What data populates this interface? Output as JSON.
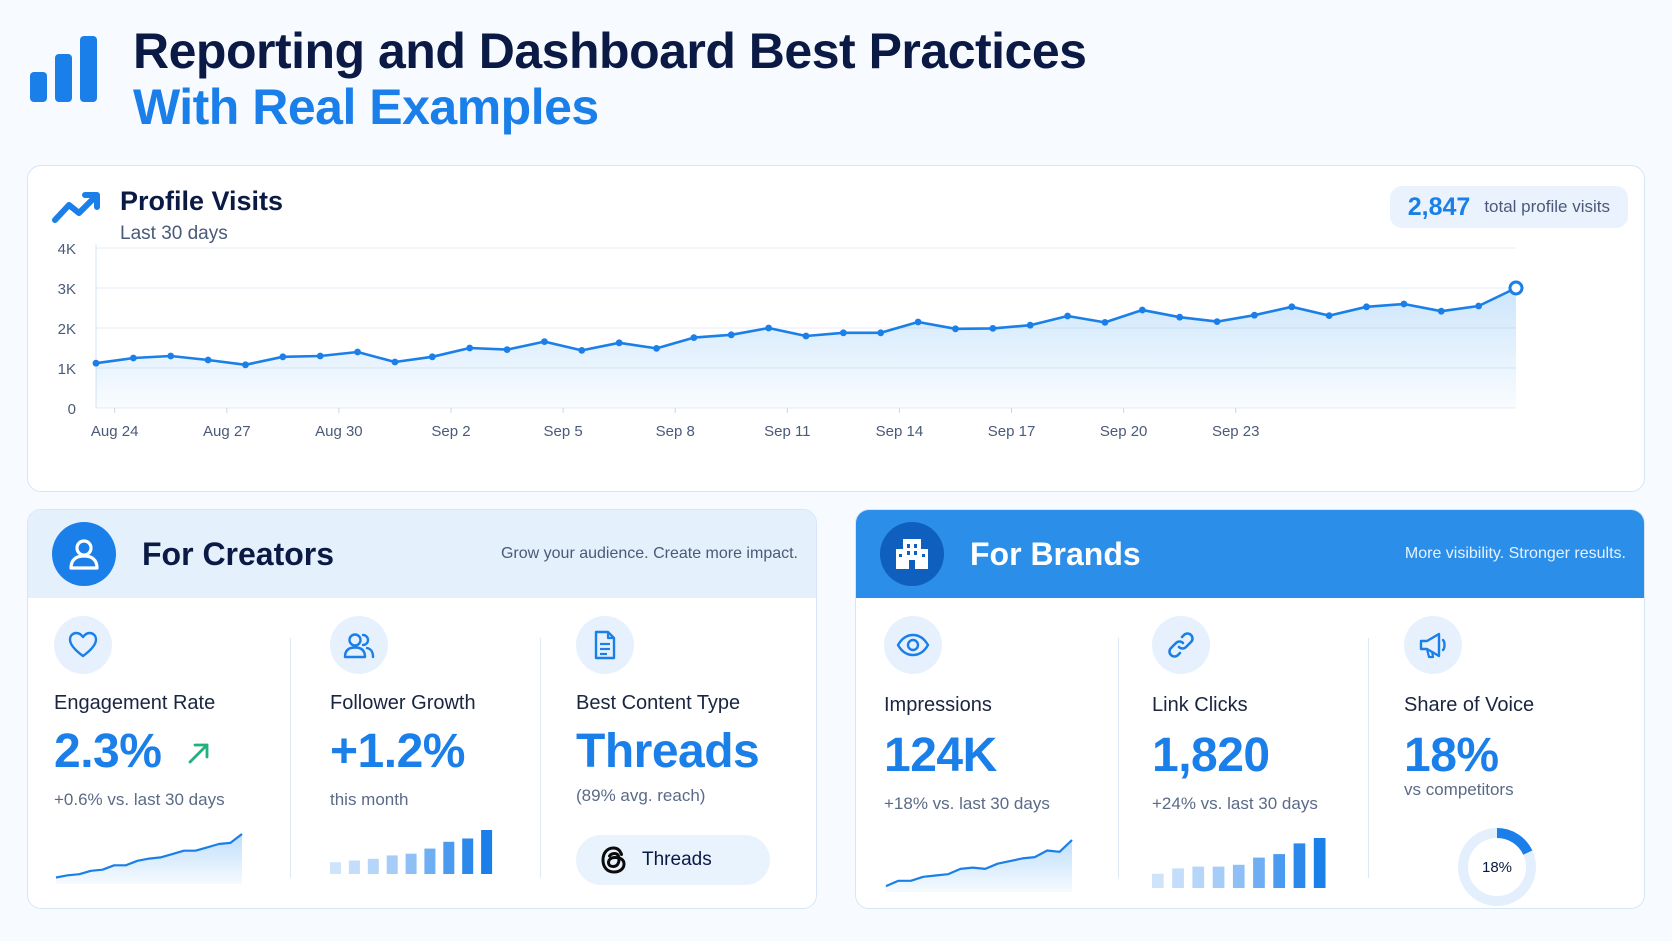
{
  "page": {
    "title_line1": "Reporting and Dashboard Best Practices",
    "title_line2": "With Real Examples",
    "logo_icon": "bar-chart-logo-icon"
  },
  "colors": {
    "accent": "#1a7fe8",
    "accent_light": "#e4f0fc",
    "brand_header": "#2b8ee8",
    "dark": "#0b1a45",
    "growth_arrow": "#22b07d"
  },
  "profile_visits": {
    "title": "Profile Visits",
    "subtitle": "Last 30 days",
    "total_value": "2,847",
    "total_label": "total profile visits"
  },
  "chart_data": [
    {
      "type": "line",
      "title": "Profile Visits",
      "subtitle": "Last 30 days",
      "x_tick_labels": [
        "Aug 24",
        "Aug 27",
        "Aug 30",
        "Sep 2",
        "Sep 5",
        "Sep 8",
        "Sep 11",
        "Sep 14",
        "Sep 17",
        "Sep 20",
        "Sep 23"
      ],
      "y_tick_labels": [
        "0",
        "1K",
        "2K",
        "3K",
        "4K"
      ],
      "ylim": [
        0,
        4000
      ],
      "grid": true,
      "fill": "area under line",
      "series": [
        {
          "values": [
            1120,
            1250,
            1300,
            1200,
            1080,
            1280,
            1300,
            1400,
            1150,
            1280,
            1500,
            1460,
            1660,
            1440,
            1630,
            1490,
            1760,
            1830,
            2000,
            1800,
            1880,
            1880,
            2150,
            1980,
            1990,
            2070,
            2300,
            2140,
            2450,
            2270,
            2160,
            2320,
            2530,
            2310,
            2530,
            2600,
            2420,
            2550,
            3000
          ]
        }
      ]
    },
    {
      "type": "area",
      "name": "Engagement Rate sparkline",
      "values": [
        8,
        12,
        14,
        20,
        22,
        30,
        30,
        38,
        42,
        44,
        50,
        56,
        56,
        62,
        68,
        70,
        86
      ]
    },
    {
      "type": "bar",
      "name": "Follower Growth bars",
      "values": [
        14,
        16,
        18,
        22,
        24,
        30,
        38,
        42,
        52
      ]
    },
    {
      "type": "area",
      "name": "Impressions sparkline",
      "values": [
        6,
        14,
        14,
        20,
        22,
        24,
        32,
        34,
        32,
        40,
        44,
        48,
        50,
        60,
        58,
        76
      ]
    },
    {
      "type": "bar",
      "name": "Link Clicks bars",
      "values": [
        16,
        22,
        24,
        24,
        26,
        34,
        38,
        50,
        56
      ]
    },
    {
      "type": "pie",
      "name": "Share of Voice donut",
      "values": [
        18,
        82
      ],
      "center_label": "18%"
    }
  ],
  "creators": {
    "title": "For Creators",
    "tagline": "Grow your audience. Create more impact.",
    "header_icon": "user-icon",
    "metrics": [
      {
        "icon": "heart-icon",
        "label": "Engagement Rate",
        "value": "2.3%",
        "sub": "+0.6% vs. last 30 days"
      },
      {
        "icon": "users-icon",
        "label": "Follower Growth",
        "value": "+1.2%",
        "sub": "this month"
      },
      {
        "icon": "document-icon",
        "label": "Best Content Type",
        "value": "Threads",
        "sub": "(89% avg. reach)",
        "pill_label": "Threads"
      }
    ]
  },
  "brands": {
    "title": "For Brands",
    "tagline": "More visibility. Stronger results.",
    "header_icon": "building-icon",
    "metrics": [
      {
        "icon": "eye-icon",
        "label": "Impressions",
        "value": "124K",
        "sub": "+18% vs. last 30 days"
      },
      {
        "icon": "link-icon",
        "label": "Link Clicks",
        "value": "1,820",
        "sub": "+24% vs. last 30 days"
      },
      {
        "icon": "megaphone-icon",
        "label": "Share of Voice",
        "value": "18%",
        "sub": "vs competitors"
      }
    ]
  }
}
